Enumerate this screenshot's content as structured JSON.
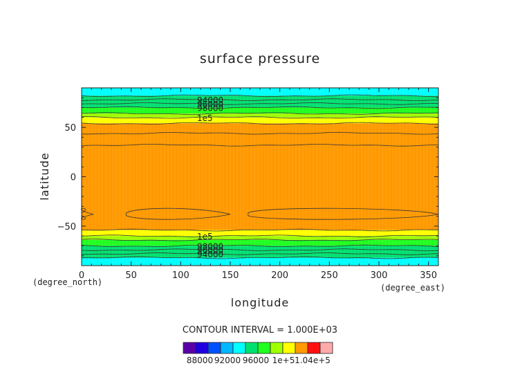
{
  "chart_data": {
    "type": "heatmap",
    "title": "surface pressure",
    "xlabel": "longitude",
    "ylabel": "latitude",
    "x_units": "(degree_east)",
    "y_units": "(degree_north)",
    "xlim": [
      0,
      360
    ],
    "ylim": [
      -90,
      90
    ],
    "x_ticks": [
      "0",
      "50",
      "100",
      "150",
      "200",
      "250",
      "300",
      "350"
    ],
    "y_ticks": [
      "50",
      "0",
      "−50"
    ],
    "x_tick_values": [
      0,
      50,
      100,
      150,
      200,
      250,
      300,
      350
    ],
    "y_tick_values": [
      50,
      0,
      -50
    ],
    "contour_interval_text": "CONTOUR INTERVAL = 1.000E+03",
    "contour_labels": [
      "94000",
      "96000",
      "98000",
      "1e5",
      "1e5",
      "98000",
      "96000",
      "94000"
    ],
    "colorbar": {
      "labels": [
        "88000",
        "92000",
        "96000",
        "1e+5",
        "1.04e+5"
      ],
      "colors": [
        "#5a00a8",
        "#2000e0",
        "#0050ff",
        "#00b8ff",
        "#00ffff",
        "#00e070",
        "#20ff20",
        "#a0ff00",
        "#ffff00",
        "#ff9900",
        "#ff1010",
        "#ffaaaa"
      ]
    },
    "bands": [
      {
        "lat_from": 90,
        "lat_to": 82,
        "color": "#00ffff"
      },
      {
        "lat_from": 82,
        "lat_to": 70,
        "color": "#00e070"
      },
      {
        "lat_from": 70,
        "lat_to": 64,
        "color": "#20ff20"
      },
      {
        "lat_from": 64,
        "lat_to": 60,
        "color": "#a0ff00"
      },
      {
        "lat_from": 60,
        "lat_to": 54,
        "color": "#ffff00"
      },
      {
        "lat_from": 54,
        "lat_to": -54,
        "color": "#ff9900"
      },
      {
        "lat_from": -54,
        "lat_to": -60,
        "color": "#ffff00"
      },
      {
        "lat_from": -60,
        "lat_to": -64,
        "color": "#a0ff00"
      },
      {
        "lat_from": -64,
        "lat_to": -70,
        "color": "#20ff20"
      },
      {
        "lat_from": -70,
        "lat_to": -82,
        "color": "#00e070"
      },
      {
        "lat_from": -82,
        "lat_to": -90,
        "color": "#00ffff"
      }
    ],
    "contour_lines_lat": [
      82,
      78,
      74,
      70,
      64,
      60,
      54,
      44,
      32,
      -54,
      -60,
      -64,
      -70,
      -74,
      -78,
      -82
    ]
  }
}
